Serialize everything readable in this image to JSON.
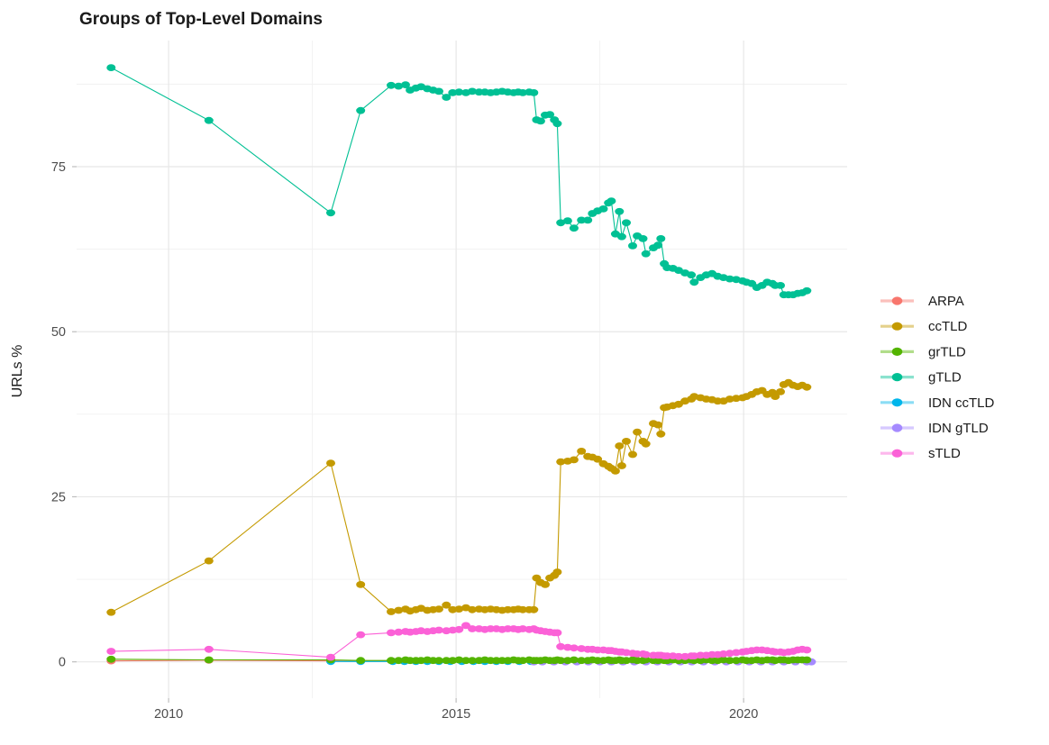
{
  "title": "Groups of Top-Level Domains",
  "axes": {
    "y_label": "URLs %",
    "y_ticks": [
      0,
      25,
      50,
      75
    ],
    "y_tick_labels": [
      "0",
      "25",
      "50",
      "75"
    ],
    "x_ticks": [
      2010,
      2015,
      2020
    ],
    "x_tick_labels": [
      "2010",
      "2015",
      "2020"
    ],
    "x_minor": [
      2012.5,
      2017.5
    ],
    "y_minor": [
      12.5,
      37.5,
      62.5,
      87.5
    ]
  },
  "legend": {
    "items": [
      {
        "label": "ARPA",
        "color": "#F8766D"
      },
      {
        "label": "ccTLD",
        "color": "#C49A00"
      },
      {
        "label": "grTLD",
        "color": "#53B400"
      },
      {
        "label": "gTLD",
        "color": "#00C094"
      },
      {
        "label": "IDN ccTLD",
        "color": "#00B6EB"
      },
      {
        "label": "IDN gTLD",
        "color": "#A58AFF"
      },
      {
        "label": "sTLD",
        "color": "#FB61D7"
      }
    ]
  },
  "chart_data": {
    "type": "line",
    "title": "Groups of Top-Level Domains",
    "xlabel": "",
    "ylabel": "URLs %",
    "xlim": [
      2008.4,
      2021.8
    ],
    "ylim": [
      -5.5,
      94.1
    ],
    "grid": true,
    "legend_position": "right",
    "marker": "point",
    "series": [
      {
        "name": "ARPA",
        "color": "#F8766D",
        "x": [
          2009.0,
          2010.7,
          2012.82,
          2013.34,
          2013.9,
          2014.1,
          2014.3,
          2014.5,
          2014.7,
          2014.9,
          2015.1,
          2015.3,
          2015.5,
          2015.7,
          2015.9,
          2016.1,
          2016.3,
          2016.5,
          2016.7,
          2016.9,
          2017.1,
          2017.3,
          2017.5,
          2017.7,
          2017.9,
          2018.1,
          2018.3,
          2018.5,
          2018.7,
          2018.9,
          2019.1,
          2019.3,
          2019.5,
          2019.7,
          2019.9,
          2020.1,
          2020.3,
          2020.5,
          2020.7,
          2020.9,
          2021.1
        ],
        "y": [
          0.15,
          0.25,
          0.15,
          0.1,
          0.1,
          0.1,
          0.1,
          0.1,
          0.1,
          0.1,
          0.1,
          0.1,
          0.1,
          0.1,
          0.1,
          0.1,
          0.1,
          0.1,
          0.1,
          0.1,
          0.1,
          0.1,
          0.1,
          0.1,
          0.1,
          0.1,
          0.1,
          0.1,
          0.1,
          0.1,
          0.1,
          0.1,
          0.1,
          0.1,
          0.1,
          0.1,
          0.1,
          0.1,
          0.1,
          0.1,
          0.1
        ]
      },
      {
        "name": "IDN ccTLD",
        "color": "#00B6EB",
        "x": [
          2012.82,
          2013.34,
          2013.9,
          2014.1,
          2014.3,
          2014.5,
          2014.7,
          2014.9,
          2015.1,
          2015.3,
          2015.5,
          2015.7,
          2015.9,
          2016.1,
          2016.3,
          2016.5,
          2016.7,
          2016.9,
          2017.1,
          2017.3,
          2017.5,
          2017.7,
          2017.9,
          2018.1,
          2018.3,
          2018.5,
          2018.7,
          2018.9,
          2019.1,
          2019.3,
          2019.5,
          2019.7,
          2019.9,
          2020.1,
          2020.3,
          2020.5,
          2020.7,
          2020.9,
          2021.1
        ],
        "y": [
          0.05,
          0.05,
          0.05,
          0.05,
          0.05,
          0.05,
          0.05,
          0.05,
          0.05,
          0.05,
          0.05,
          0.05,
          0.05,
          0.05,
          0.05,
          0.05,
          0.05,
          0.05,
          0.05,
          0.05,
          0.05,
          0.05,
          0.05,
          0.05,
          0.05,
          0.05,
          0.05,
          0.05,
          0.05,
          0.05,
          0.05,
          0.05,
          0.05,
          0.05,
          0.05,
          0.05,
          0.05,
          0.05,
          0.05
        ]
      },
      {
        "name": "IDN gTLD",
        "color": "#A58AFF",
        "x": [
          2016.35,
          2016.5,
          2016.7,
          2016.9,
          2017.1,
          2017.3,
          2017.5,
          2017.7,
          2017.9,
          2018.1,
          2018.3,
          2018.5,
          2018.7,
          2018.9,
          2019.1,
          2019.3,
          2019.5,
          2019.7,
          2019.9,
          2020.1,
          2020.3,
          2020.5,
          2020.7,
          2020.9,
          2021.1,
          2021.18
        ],
        "y": [
          0.0,
          0.0,
          0.0,
          0.0,
          0.0,
          0.0,
          0.0,
          0.0,
          0.0,
          0.0,
          0.0,
          0.0,
          0.0,
          0.0,
          0.0,
          0.0,
          0.0,
          0.0,
          0.0,
          0.0,
          0.0,
          0.0,
          0.0,
          0.0,
          0.0,
          0.0
        ]
      },
      {
        "name": "grTLD",
        "color": "#53B400",
        "x": [
          2009.0,
          2010.7,
          2012.82,
          2013.34,
          2013.87,
          2014.0,
          2014.12,
          2014.2,
          2014.3,
          2014.39,
          2014.5,
          2014.6,
          2014.7,
          2014.83,
          2014.94,
          2015.05,
          2015.17,
          2015.28,
          2015.4,
          2015.5,
          2015.6,
          2015.7,
          2015.8,
          2015.9,
          2016.0,
          2016.08,
          2016.16,
          2016.27,
          2016.35,
          2016.4,
          2016.47,
          2016.55,
          2016.63,
          2016.71,
          2016.76,
          2016.82,
          2016.94,
          2017.05,
          2017.18,
          2017.29,
          2017.37,
          2017.46,
          2017.56,
          2017.65,
          2017.7,
          2017.77,
          2017.84,
          2017.88,
          2017.96,
          2018.07,
          2018.15,
          2018.25,
          2018.3,
          2018.43,
          2018.51,
          2018.56,
          2018.62,
          2018.67,
          2018.77,
          2018.87,
          2018.98,
          2019.09,
          2019.14,
          2019.25,
          2019.35,
          2019.45,
          2019.55,
          2019.65,
          2019.76,
          2019.87,
          2019.98,
          2020.05,
          2020.14,
          2020.23,
          2020.32,
          2020.41,
          2020.5,
          2020.55,
          2020.64,
          2020.7,
          2020.78,
          2020.86,
          2020.94,
          2021.02,
          2021.1
        ],
        "y": [
          0.4,
          0.3,
          0.3,
          0.2,
          0.2,
          0.2,
          0.3,
          0.2,
          0.2,
          0.2,
          0.3,
          0.2,
          0.2,
          0.2,
          0.2,
          0.3,
          0.2,
          0.2,
          0.2,
          0.3,
          0.2,
          0.2,
          0.2,
          0.2,
          0.3,
          0.2,
          0.2,
          0.3,
          0.2,
          0.2,
          0.2,
          0.3,
          0.2,
          0.2,
          0.3,
          0.2,
          0.2,
          0.3,
          0.2,
          0.2,
          0.3,
          0.2,
          0.2,
          0.3,
          0.2,
          0.2,
          0.3,
          0.2,
          0.2,
          0.3,
          0.2,
          0.2,
          0.3,
          0.2,
          0.2,
          0.3,
          0.2,
          0.2,
          0.3,
          0.2,
          0.2,
          0.3,
          0.2,
          0.2,
          0.3,
          0.2,
          0.2,
          0.3,
          0.2,
          0.2,
          0.3,
          0.2,
          0.2,
          0.3,
          0.2,
          0.3,
          0.3,
          0.2,
          0.3,
          0.3,
          0.2,
          0.3,
          0.3,
          0.3,
          0.3
        ]
      },
      {
        "name": "ccTLD",
        "color": "#C49A00",
        "x": [
          2009.0,
          2010.7,
          2012.82,
          2013.34,
          2013.87,
          2014.0,
          2014.12,
          2014.2,
          2014.3,
          2014.39,
          2014.5,
          2014.6,
          2014.7,
          2014.83,
          2014.94,
          2015.05,
          2015.17,
          2015.28,
          2015.4,
          2015.5,
          2015.6,
          2015.7,
          2015.8,
          2015.9,
          2016.0,
          2016.08,
          2016.16,
          2016.27,
          2016.35,
          2016.4,
          2016.47,
          2016.55,
          2016.63,
          2016.71,
          2016.76,
          2016.82,
          2016.94,
          2017.05,
          2017.18,
          2017.29,
          2017.37,
          2017.46,
          2017.56,
          2017.65,
          2017.7,
          2017.77,
          2017.84,
          2017.88,
          2017.96,
          2018.07,
          2018.15,
          2018.25,
          2018.3,
          2018.43,
          2018.51,
          2018.56,
          2018.62,
          2018.67,
          2018.77,
          2018.87,
          2018.98,
          2019.09,
          2019.14,
          2019.25,
          2019.35,
          2019.45,
          2019.55,
          2019.65,
          2019.76,
          2019.87,
          2019.98,
          2020.05,
          2020.14,
          2020.23,
          2020.32,
          2020.41,
          2020.5,
          2020.55,
          2020.64,
          2020.7,
          2020.78,
          2020.86,
          2020.94,
          2021.02,
          2021.1
        ],
        "y": [
          7.5,
          15.3,
          30.1,
          11.7,
          7.6,
          7.8,
          8.0,
          7.7,
          7.9,
          8.1,
          7.8,
          7.9,
          8.0,
          8.6,
          7.9,
          8.0,
          8.2,
          7.9,
          8.0,
          7.9,
          8.0,
          7.9,
          7.8,
          7.9,
          7.9,
          8.0,
          7.9,
          7.9,
          7.9,
          12.7,
          12.0,
          11.7,
          12.7,
          13.1,
          13.6,
          30.3,
          30.4,
          30.6,
          31.9,
          31.1,
          31.0,
          30.7,
          30.0,
          29.6,
          29.3,
          28.9,
          32.7,
          29.7,
          33.4,
          31.4,
          34.8,
          33.4,
          33.0,
          36.1,
          35.9,
          34.5,
          38.5,
          38.6,
          38.8,
          39.0,
          39.5,
          39.8,
          40.2,
          40.0,
          39.8,
          39.7,
          39.5,
          39.5,
          39.8,
          39.9,
          40.0,
          40.2,
          40.5,
          40.9,
          41.1,
          40.5,
          40.8,
          40.2,
          40.9,
          42.0,
          42.3,
          41.9,
          41.7,
          41.9,
          41.6
        ]
      },
      {
        "name": "gTLD",
        "color": "#00C094",
        "x": [
          2009.0,
          2010.7,
          2012.82,
          2013.34,
          2013.87,
          2014.0,
          2014.12,
          2014.2,
          2014.3,
          2014.39,
          2014.5,
          2014.6,
          2014.7,
          2014.83,
          2014.94,
          2015.05,
          2015.17,
          2015.28,
          2015.4,
          2015.5,
          2015.6,
          2015.7,
          2015.8,
          2015.9,
          2016.0,
          2016.08,
          2016.16,
          2016.27,
          2016.35,
          2016.4,
          2016.47,
          2016.55,
          2016.63,
          2016.71,
          2016.76,
          2016.82,
          2016.94,
          2017.05,
          2017.18,
          2017.29,
          2017.37,
          2017.46,
          2017.56,
          2017.65,
          2017.7,
          2017.77,
          2017.84,
          2017.88,
          2017.96,
          2018.07,
          2018.15,
          2018.25,
          2018.3,
          2018.43,
          2018.51,
          2018.56,
          2018.62,
          2018.67,
          2018.77,
          2018.87,
          2018.98,
          2019.09,
          2019.14,
          2019.25,
          2019.35,
          2019.45,
          2019.55,
          2019.65,
          2019.76,
          2019.87,
          2019.98,
          2020.05,
          2020.14,
          2020.23,
          2020.32,
          2020.41,
          2020.5,
          2020.55,
          2020.64,
          2020.7,
          2020.78,
          2020.86,
          2020.94,
          2021.02,
          2021.1
        ],
        "y": [
          90.0,
          82.0,
          68.0,
          83.5,
          87.3,
          87.2,
          87.4,
          86.6,
          86.9,
          87.1,
          86.8,
          86.6,
          86.4,
          85.5,
          86.2,
          86.3,
          86.2,
          86.4,
          86.3,
          86.3,
          86.2,
          86.3,
          86.4,
          86.3,
          86.2,
          86.3,
          86.2,
          86.3,
          86.2,
          82.1,
          81.9,
          82.8,
          82.9,
          82.1,
          81.5,
          66.5,
          66.8,
          65.7,
          66.9,
          66.9,
          67.9,
          68.3,
          68.6,
          69.5,
          69.8,
          64.8,
          68.2,
          64.4,
          66.5,
          63.0,
          64.5,
          64.1,
          61.8,
          62.7,
          63.1,
          64.1,
          60.3,
          59.7,
          59.6,
          59.3,
          58.9,
          58.6,
          57.5,
          58.2,
          58.6,
          58.8,
          58.4,
          58.2,
          58.0,
          57.9,
          57.7,
          57.5,
          57.3,
          56.7,
          57.0,
          57.5,
          57.3,
          57.0,
          57.0,
          55.6,
          55.6,
          55.6,
          55.8,
          55.9,
          56.2
        ]
      },
      {
        "name": "sTLD",
        "color": "#FB61D7",
        "x": [
          2009.0,
          2010.7,
          2012.82,
          2013.34,
          2013.87,
          2014.0,
          2014.12,
          2014.2,
          2014.3,
          2014.39,
          2014.5,
          2014.6,
          2014.7,
          2014.83,
          2014.94,
          2015.05,
          2015.17,
          2015.28,
          2015.4,
          2015.5,
          2015.6,
          2015.7,
          2015.8,
          2015.9,
          2016.0,
          2016.08,
          2016.16,
          2016.27,
          2016.35,
          2016.4,
          2016.47,
          2016.55,
          2016.63,
          2016.71,
          2016.76,
          2016.82,
          2016.94,
          2017.05,
          2017.18,
          2017.29,
          2017.37,
          2017.46,
          2017.56,
          2017.65,
          2017.7,
          2017.77,
          2017.84,
          2017.88,
          2017.96,
          2018.07,
          2018.15,
          2018.25,
          2018.3,
          2018.43,
          2018.51,
          2018.56,
          2018.62,
          2018.67,
          2018.77,
          2018.87,
          2018.98,
          2019.09,
          2019.14,
          2019.25,
          2019.35,
          2019.45,
          2019.55,
          2019.65,
          2019.76,
          2019.87,
          2019.98,
          2020.05,
          2020.14,
          2020.23,
          2020.32,
          2020.41,
          2020.5,
          2020.55,
          2020.64,
          2020.7,
          2020.78,
          2020.86,
          2020.94,
          2021.02,
          2021.1
        ],
        "y": [
          1.6,
          1.9,
          0.7,
          4.1,
          4.4,
          4.5,
          4.6,
          4.5,
          4.6,
          4.7,
          4.6,
          4.7,
          4.8,
          4.7,
          4.8,
          4.9,
          5.5,
          5.0,
          5.0,
          4.9,
          5.0,
          5.0,
          4.9,
          5.0,
          5.0,
          4.9,
          5.0,
          4.9,
          5.0,
          4.8,
          4.7,
          4.6,
          4.5,
          4.4,
          4.4,
          2.3,
          2.2,
          2.1,
          2.0,
          1.9,
          1.9,
          1.8,
          1.8,
          1.7,
          1.7,
          1.6,
          1.5,
          1.5,
          1.4,
          1.3,
          1.2,
          1.2,
          1.1,
          1.0,
          1.0,
          1.0,
          0.9,
          0.9,
          0.9,
          0.8,
          0.8,
          0.9,
          0.9,
          1.0,
          1.0,
          1.1,
          1.1,
          1.2,
          1.3,
          1.4,
          1.5,
          1.6,
          1.7,
          1.8,
          1.8,
          1.7,
          1.6,
          1.5,
          1.5,
          1.4,
          1.5,
          1.6,
          1.8,
          1.9,
          1.8
        ]
      }
    ]
  }
}
